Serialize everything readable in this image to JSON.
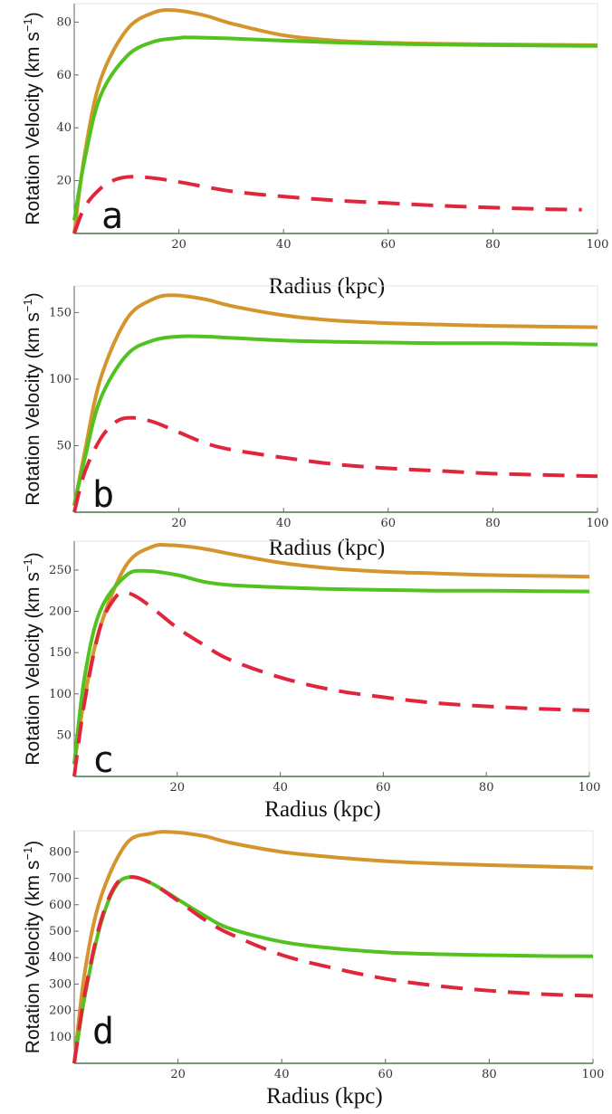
{
  "figure": {
    "colors": {
      "total": "#d4962c",
      "halo": "#52c21e",
      "disk": "#e0263c",
      "axis": "#666666",
      "text": "#111111"
    },
    "units_note": "velocity in km s^-1, radius in kpc"
  },
  "chart_data": [
    {
      "type": "line",
      "panel_label": "a",
      "xlabel": "Radius (kpc)",
      "ylabel": "Rotation Velocity (km s",
      "ylabel_sup": "−1",
      "ylabel_tail": ")",
      "xlim": [
        0,
        100
      ],
      "ylim": [
        0,
        87
      ],
      "x_ticks": [
        20,
        40,
        60,
        80,
        100
      ],
      "y_ticks": [
        20,
        40,
        60,
        80
      ],
      "grid": false,
      "series": [
        {
          "role": "total",
          "style": "solid",
          "color": "#d4962c",
          "x": [
            0,
            2,
            5,
            10,
            15,
            19,
            25,
            30,
            40,
            50,
            60,
            70,
            80,
            90,
            100
          ],
          "y": [
            0,
            30,
            58,
            77,
            83.5,
            84.5,
            82.5,
            79.5,
            75,
            73,
            72.2,
            71.8,
            71.6,
            71.4,
            71.3
          ]
        },
        {
          "role": "halo",
          "style": "solid",
          "color": "#52c21e",
          "x": [
            0,
            2,
            5,
            10,
            15,
            20,
            22,
            30,
            40,
            50,
            60,
            70,
            80,
            90,
            100
          ],
          "y": [
            5,
            28,
            52,
            67,
            72.5,
            74,
            74.2,
            73.8,
            73,
            72.3,
            71.8,
            71.5,
            71.3,
            71.1,
            71
          ]
        },
        {
          "role": "disk",
          "style": "dashed",
          "color": "#e0263c",
          "x": [
            0,
            2,
            5,
            8,
            11,
            15,
            20,
            30,
            40,
            50,
            60,
            70,
            80,
            90,
            97
          ],
          "y": [
            0,
            10,
            17,
            20.5,
            21.5,
            21,
            19.5,
            16,
            14,
            12.5,
            11.5,
            10.5,
            9.8,
            9.2,
            9
          ]
        }
      ]
    },
    {
      "type": "line",
      "panel_label": "b",
      "xlabel": "Radius (kpc)",
      "ylabel": "Rotation Velocity (km s",
      "ylabel_sup": "−1",
      "ylabel_tail": ")",
      "xlim": [
        0,
        100
      ],
      "ylim": [
        0,
        170
      ],
      "x_ticks": [
        20,
        40,
        60,
        80,
        100
      ],
      "y_ticks": [
        50,
        100,
        150
      ],
      "grid": false,
      "series": [
        {
          "role": "total",
          "style": "solid",
          "color": "#d4962c",
          "x": [
            0,
            2,
            5,
            10,
            15,
            19,
            25,
            30,
            40,
            50,
            60,
            70,
            80,
            90,
            100
          ],
          "y": [
            5,
            45,
            100,
            145,
            160,
            163,
            160,
            155,
            148,
            144,
            142,
            141,
            140,
            139.5,
            139
          ]
        },
        {
          "role": "halo",
          "style": "solid",
          "color": "#52c21e",
          "x": [
            0,
            2,
            5,
            10,
            15,
            20,
            25,
            30,
            40,
            50,
            60,
            70,
            80,
            90,
            100
          ],
          "y": [
            5,
            40,
            85,
            118,
            129,
            132,
            132,
            131,
            129,
            128,
            127.5,
            127,
            127,
            126.5,
            126
          ]
        },
        {
          "role": "disk",
          "style": "dashed",
          "color": "#e0263c",
          "x": [
            0,
            2,
            5,
            8,
            11,
            15,
            20,
            25,
            30,
            40,
            50,
            60,
            70,
            80,
            90,
            100
          ],
          "y": [
            0,
            30,
            55,
            68,
            71,
            68,
            60,
            52,
            47,
            41,
            36,
            33,
            31,
            29,
            28,
            27
          ]
        }
      ]
    },
    {
      "type": "line",
      "panel_label": "c",
      "xlabel": "Radius (kpc)",
      "ylabel": "Rotation Velocity (km s",
      "ylabel_sup": "−1",
      "ylabel_tail": ")",
      "xlim": [
        0,
        100
      ],
      "ylim": [
        0,
        285
      ],
      "x_ticks": [
        20,
        40,
        60,
        80,
        100
      ],
      "y_ticks": [
        50,
        100,
        150,
        200,
        250
      ],
      "grid": false,
      "series": [
        {
          "role": "total",
          "style": "solid",
          "color": "#d4962c",
          "x": [
            0,
            2,
            5,
            10,
            15,
            19,
            25,
            30,
            40,
            50,
            60,
            70,
            80,
            90,
            100
          ],
          "y": [
            15,
            95,
            180,
            255,
            278,
            280,
            276,
            270,
            259,
            252,
            248,
            246,
            244,
            243,
            242
          ]
        },
        {
          "role": "halo",
          "style": "solid",
          "color": "#52c21e",
          "x": [
            0,
            2,
            5,
            10,
            14,
            20,
            25,
            30,
            40,
            50,
            60,
            70,
            80,
            90,
            100
          ],
          "y": [
            15,
            120,
            200,
            243,
            249,
            244,
            236,
            232,
            229,
            227,
            226,
            225,
            225,
            224.5,
            224
          ]
        },
        {
          "role": "disk",
          "style": "dashed",
          "color": "#e0263c",
          "x": [
            0,
            2,
            5,
            8,
            10,
            12,
            15,
            20,
            25,
            30,
            40,
            50,
            60,
            70,
            80,
            90,
            100
          ],
          "y": [
            0,
            90,
            180,
            217,
            222,
            218,
            205,
            180,
            160,
            142,
            120,
            105,
            96,
            89,
            85,
            82,
            80
          ]
        }
      ]
    },
    {
      "type": "line",
      "panel_label": "d",
      "xlabel": "Radius (kpc)",
      "ylabel": "Rotation Velocity (km s",
      "ylabel_sup": "−1",
      "ylabel_tail": ")",
      "xlim": [
        0,
        100
      ],
      "ylim": [
        0,
        880
      ],
      "x_ticks": [
        20,
        40,
        60,
        80,
        100
      ],
      "y_ticks": [
        100,
        200,
        300,
        400,
        500,
        600,
        700,
        800
      ],
      "grid": false,
      "series": [
        {
          "role": "total",
          "style": "solid",
          "color": "#d4962c",
          "x": [
            0,
            2,
            5,
            10,
            15,
            19,
            25,
            30,
            40,
            50,
            60,
            70,
            80,
            90,
            100
          ],
          "y": [
            0,
            340,
            620,
            830,
            870,
            875,
            860,
            835,
            800,
            780,
            765,
            756,
            750,
            745,
            740
          ]
        },
        {
          "role": "halo",
          "style": "solid",
          "color": "#52c21e",
          "x": [
            0,
            2,
            5,
            8,
            11,
            15,
            20,
            25,
            30,
            40,
            50,
            60,
            70,
            80,
            90,
            100
          ],
          "y": [
            0,
            250,
            520,
            670,
            705,
            680,
            620,
            560,
            510,
            460,
            435,
            420,
            413,
            409,
            406,
            405
          ]
        },
        {
          "role": "disk",
          "style": "dashed",
          "color": "#e0263c",
          "x": [
            0,
            2,
            5,
            8,
            11,
            15,
            20,
            25,
            30,
            40,
            50,
            60,
            70,
            80,
            90,
            100
          ],
          "y": [
            0,
            260,
            530,
            675,
            705,
            680,
            615,
            545,
            490,
            410,
            360,
            320,
            293,
            275,
            262,
            255
          ]
        }
      ]
    }
  ]
}
